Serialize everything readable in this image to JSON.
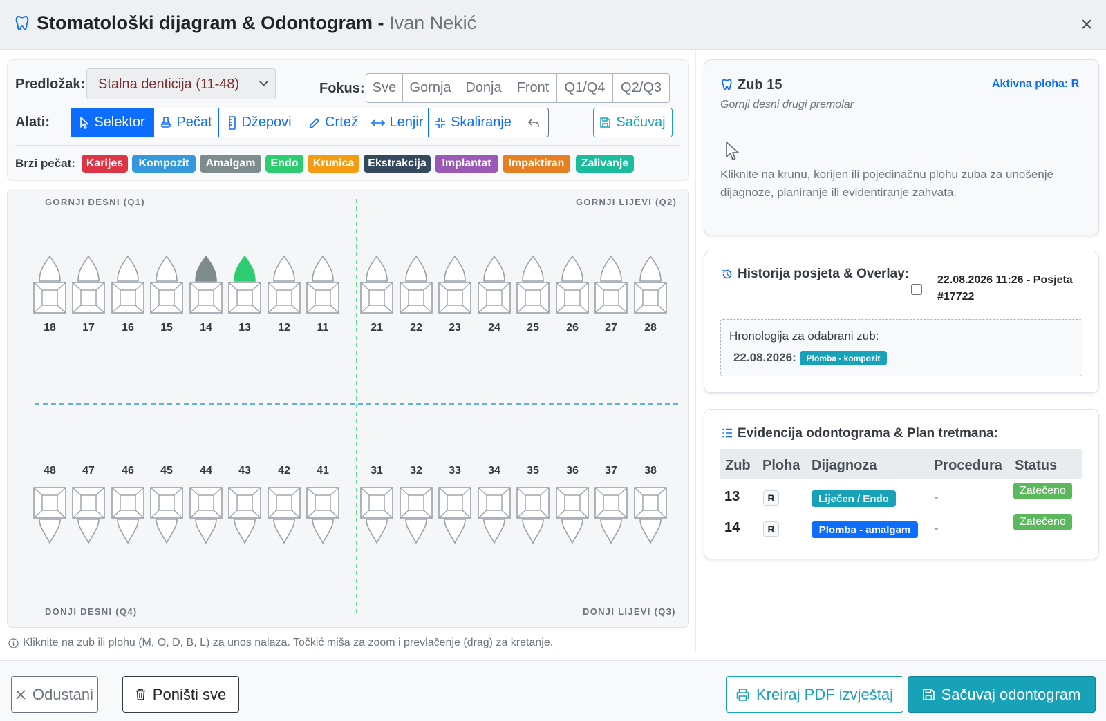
{
  "header": {
    "title": "Stomatološki dijagram & Odontogram -",
    "patient": "Ivan Nekić",
    "close": "×"
  },
  "toolbar": {
    "template_label": "Predložak:",
    "template_value": "Stalna denticija (11-48)",
    "focus_label": "Fokus:",
    "focus_options": [
      "Sve",
      "Gornja",
      "Donja",
      "Front",
      "Q1/Q4",
      "Q2/Q3"
    ],
    "tools_label": "Alati:",
    "tools": [
      {
        "label": "Selektor",
        "icon": "pointer-icon",
        "active": true
      },
      {
        "label": "Pečat",
        "icon": "stamp-icon",
        "active": false
      },
      {
        "label": "Džepovi",
        "icon": "ruler-icon",
        "active": false
      },
      {
        "label": "Crtež",
        "icon": "pencil-icon",
        "active": false
      },
      {
        "label": "Lenjir",
        "icon": "arrows-horizontal-icon",
        "active": false
      },
      {
        "label": "Skaliranje",
        "icon": "scale-icon",
        "active": false
      }
    ],
    "undo_icon": "undo-icon",
    "save_label": "Sačuvaj",
    "quick_stamp_label": "Brzi pečat:",
    "stamps": [
      {
        "label": "Karijes",
        "color": "#dc3545"
      },
      {
        "label": "Kompozit",
        "color": "#3498db"
      },
      {
        "label": "Amalgam",
        "color": "#7f8c8d"
      },
      {
        "label": "Endo",
        "color": "#2ecc71"
      },
      {
        "label": "Krunica",
        "color": "#f39c12"
      },
      {
        "label": "Ekstrakcija",
        "color": "#34495e"
      },
      {
        "label": "Implantat",
        "color": "#9b59b6"
      },
      {
        "label": "Impaktiran",
        "color": "#e67e22"
      },
      {
        "label": "Zalivanje",
        "color": "#1abc9c"
      }
    ]
  },
  "chart": {
    "q1_label": "GORNJI DESNI (Q1)",
    "q2_label": "GORNJI LIJEVI (Q2)",
    "q4_label": "DONJI DESNI (Q4)",
    "q3_label": "DONJI LIJEVI (Q3)",
    "upper_teeth": [
      "18",
      "17",
      "16",
      "15",
      "14",
      "13",
      "12",
      "11",
      "21",
      "22",
      "23",
      "24",
      "25",
      "26",
      "27",
      "28"
    ],
    "lower_teeth": [
      "48",
      "47",
      "46",
      "45",
      "44",
      "43",
      "42",
      "41",
      "31",
      "32",
      "33",
      "34",
      "35",
      "36",
      "37",
      "38"
    ],
    "marked_teeth": {
      "14": "#7f8c8d",
      "13": "#2ecc71"
    }
  },
  "hint": "Kliknite na zub ili plohu (M, O, D, B, L) za unos nalaza. Točkić miša za zoom i prevlačenje (drag) za kretanje.",
  "tooth_panel": {
    "title": "Zub 15",
    "active_face": "Aktivna ploha: R",
    "description": "Gornji desni drugi premolar",
    "instruction": "Kliknite na krunu, korijen ili pojedinačnu plohu zuba za unošenje dijagnoze, planiranje ili evidentiranje zahvata."
  },
  "history_panel": {
    "title": "Historija posjeta & Overlay:",
    "visit": "22.08.2026 11:26 - Posjeta #17722",
    "chrono_title": "Hronologija za odabrani zub:",
    "chrono_date": "22.08.2026:",
    "chrono_badge": "Plomba - kompozit"
  },
  "record_panel": {
    "title": "Evidencija odontograma & Plan tretmana:",
    "columns": [
      "Zub",
      "Ploha",
      "Dijagnoza",
      "Procedura",
      "Status"
    ],
    "rows": [
      {
        "tooth": "13",
        "face": "R",
        "diagnosis": "Liječen / Endo",
        "diagnosis_color": "#0d6efd",
        "procedure": "-",
        "status": "Zatečeno"
      },
      {
        "tooth": "14",
        "face": "R",
        "diagnosis": "Plomba - amalgam",
        "diagnosis_color": "#0d6efd",
        "procedure": "-",
        "status": "Zatečeno"
      }
    ]
  },
  "footer": {
    "cancel": "Odustani",
    "reset": "Poništi sve",
    "pdf": "Kreiraj PDF izvještaj",
    "save": "Sačuvaj odontogram"
  }
}
